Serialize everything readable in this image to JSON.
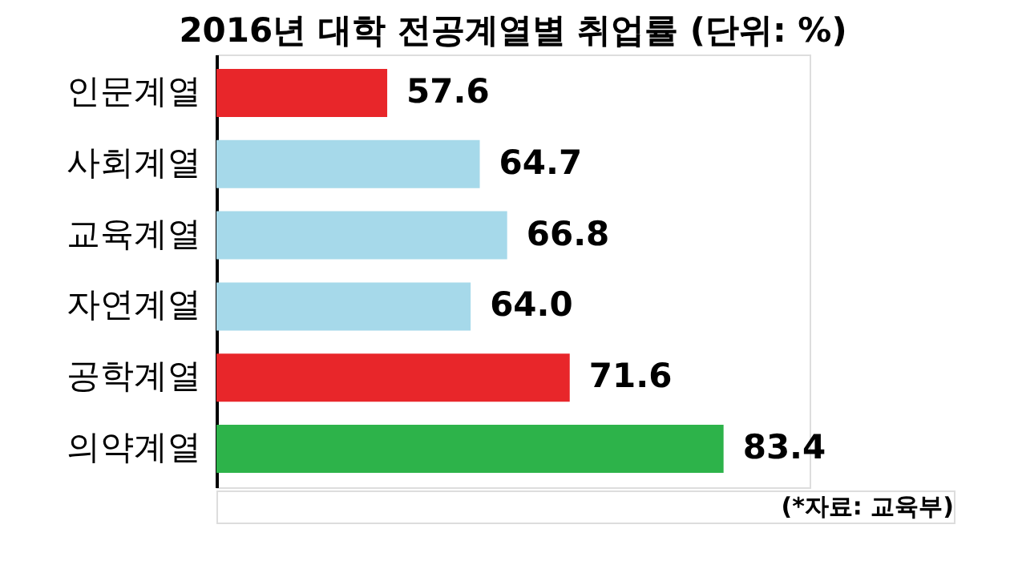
{
  "chart_data": {
    "type": "bar",
    "orientation": "horizontal",
    "title": "2016년 대학 전공계열별 취업률 (단위: %)",
    "categories": [
      "인문계열",
      "사회계열",
      "교육계열",
      "자연계열",
      "공학계열",
      "의약계열"
    ],
    "values": [
      57.6,
      64.7,
      66.8,
      64.0,
      71.6,
      83.4
    ],
    "colors": [
      "#e8262a",
      "#a6d9ea",
      "#a6d9ea",
      "#a6d9ea",
      "#e8262a",
      "#2db34a"
    ],
    "xlim": [
      44.5,
      90
    ],
    "tick_labels": "y",
    "value_labels": [
      "57.6",
      "64.7",
      "66.8",
      "64.0",
      "71.6",
      "83.4"
    ],
    "annotations": [
      "(*자료: 교육부)"
    ]
  }
}
